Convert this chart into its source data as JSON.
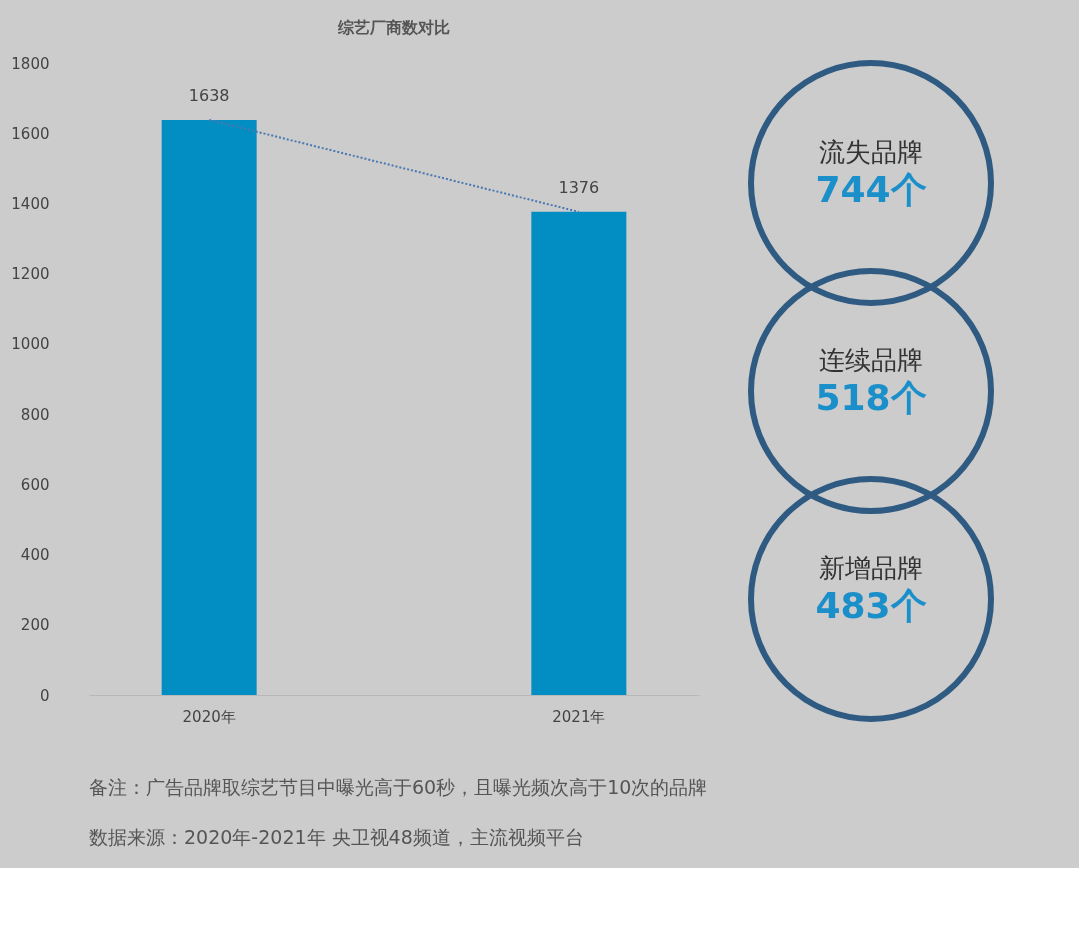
{
  "chart_data": [
    {
      "type": "bar",
      "title": "综艺厂商数对比",
      "categories": [
        "2020年",
        "2021年"
      ],
      "series": [
        {
          "type": "bar",
          "color": "#038ec3",
          "values": [
            1638,
            1376
          ],
          "value_labels": [
            "1638",
            "1376"
          ]
        },
        {
          "type": "line",
          "color": "#4a78b0",
          "values": [
            1638,
            1376
          ],
          "line_style": "dotted"
        }
      ],
      "ylim": [
        0,
        1800
      ],
      "yticks": [
        0,
        200,
        400,
        600,
        800,
        1000,
        1200,
        1400,
        1600,
        1800
      ],
      "grid": false,
      "annotations": [
        "备注：广告品牌取综艺节目中曝光高于60秒，且曝光频次高于10次的品牌",
        "数据来源：2020年-2021年  央卫视48频道，主流视频平台"
      ]
    },
    {
      "type": "other",
      "annotations": [
        "流失品牌",
        "744个",
        "连续品牌",
        "518个",
        "新增品牌",
        "483个"
      ]
    }
  ]
}
